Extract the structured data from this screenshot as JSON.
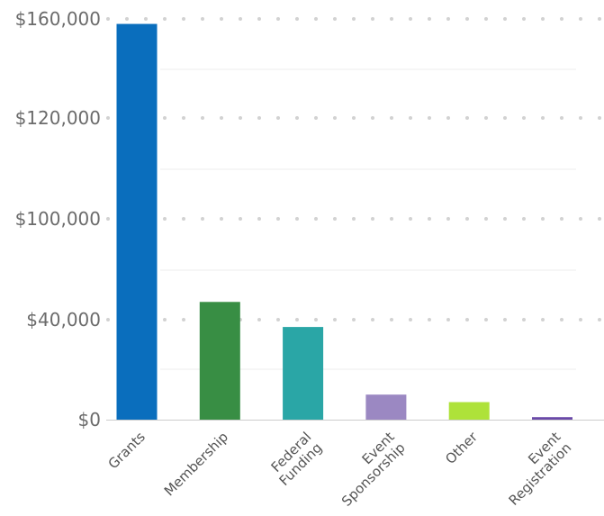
{
  "chart_data": {
    "type": "bar",
    "title": "",
    "xlabel": "",
    "ylabel": "",
    "categories": [
      [
        "Grants"
      ],
      [
        "Membership"
      ],
      [
        "Federal",
        "Funding"
      ],
      [
        "Event",
        "Sponsorship"
      ],
      [
        "Other"
      ],
      [
        "Event",
        "Registration"
      ]
    ],
    "values": [
      158000,
      47000,
      37000,
      10000,
      7000,
      1000
    ],
    "y_tick_labels": [
      "$0",
      "$40,000",
      "$100,000",
      "$120,000",
      "$160,000"
    ],
    "grid": true,
    "legend": "none",
    "colors": [
      "#0a6ebd",
      "#388e44",
      "#2aa6a6",
      "#9b88c2",
      "#aee239",
      "#6a49a8"
    ],
    "gridline_color": "#d2d2d2",
    "axis_color": "#cccccc"
  }
}
